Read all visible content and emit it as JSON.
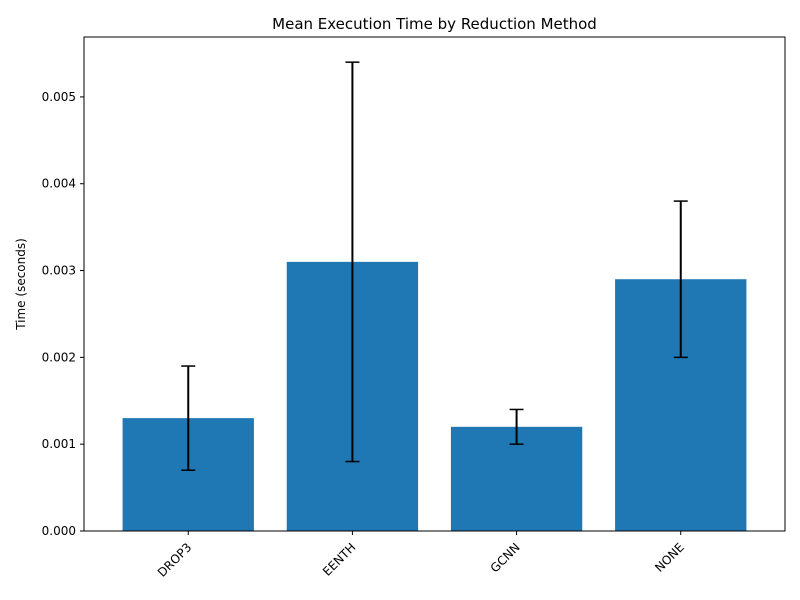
{
  "chart_data": {
    "type": "bar",
    "title": "Mean Execution Time by Reduction Method",
    "xlabel": "",
    "ylabel": "Time (seconds)",
    "categories": [
      "DROP3",
      "EENTH",
      "GCNN",
      "NONE"
    ],
    "values": [
      0.0013,
      0.0031,
      0.0012,
      0.0029
    ],
    "error_low": [
      0.0007,
      0.0008,
      0.001,
      0.002
    ],
    "error_high": [
      0.0019,
      0.0054,
      0.0014,
      0.0038
    ],
    "ylim": [
      0,
      0.00569
    ],
    "yticks": [
      0.0,
      0.001,
      0.002,
      0.003,
      0.004,
      0.005
    ],
    "ytick_labels": [
      "0.000",
      "0.001",
      "0.002",
      "0.003",
      "0.004",
      "0.005"
    ],
    "bar_color": "#1f77b4",
    "error_color": "#000000",
    "grid": false,
    "legend": "none"
  }
}
